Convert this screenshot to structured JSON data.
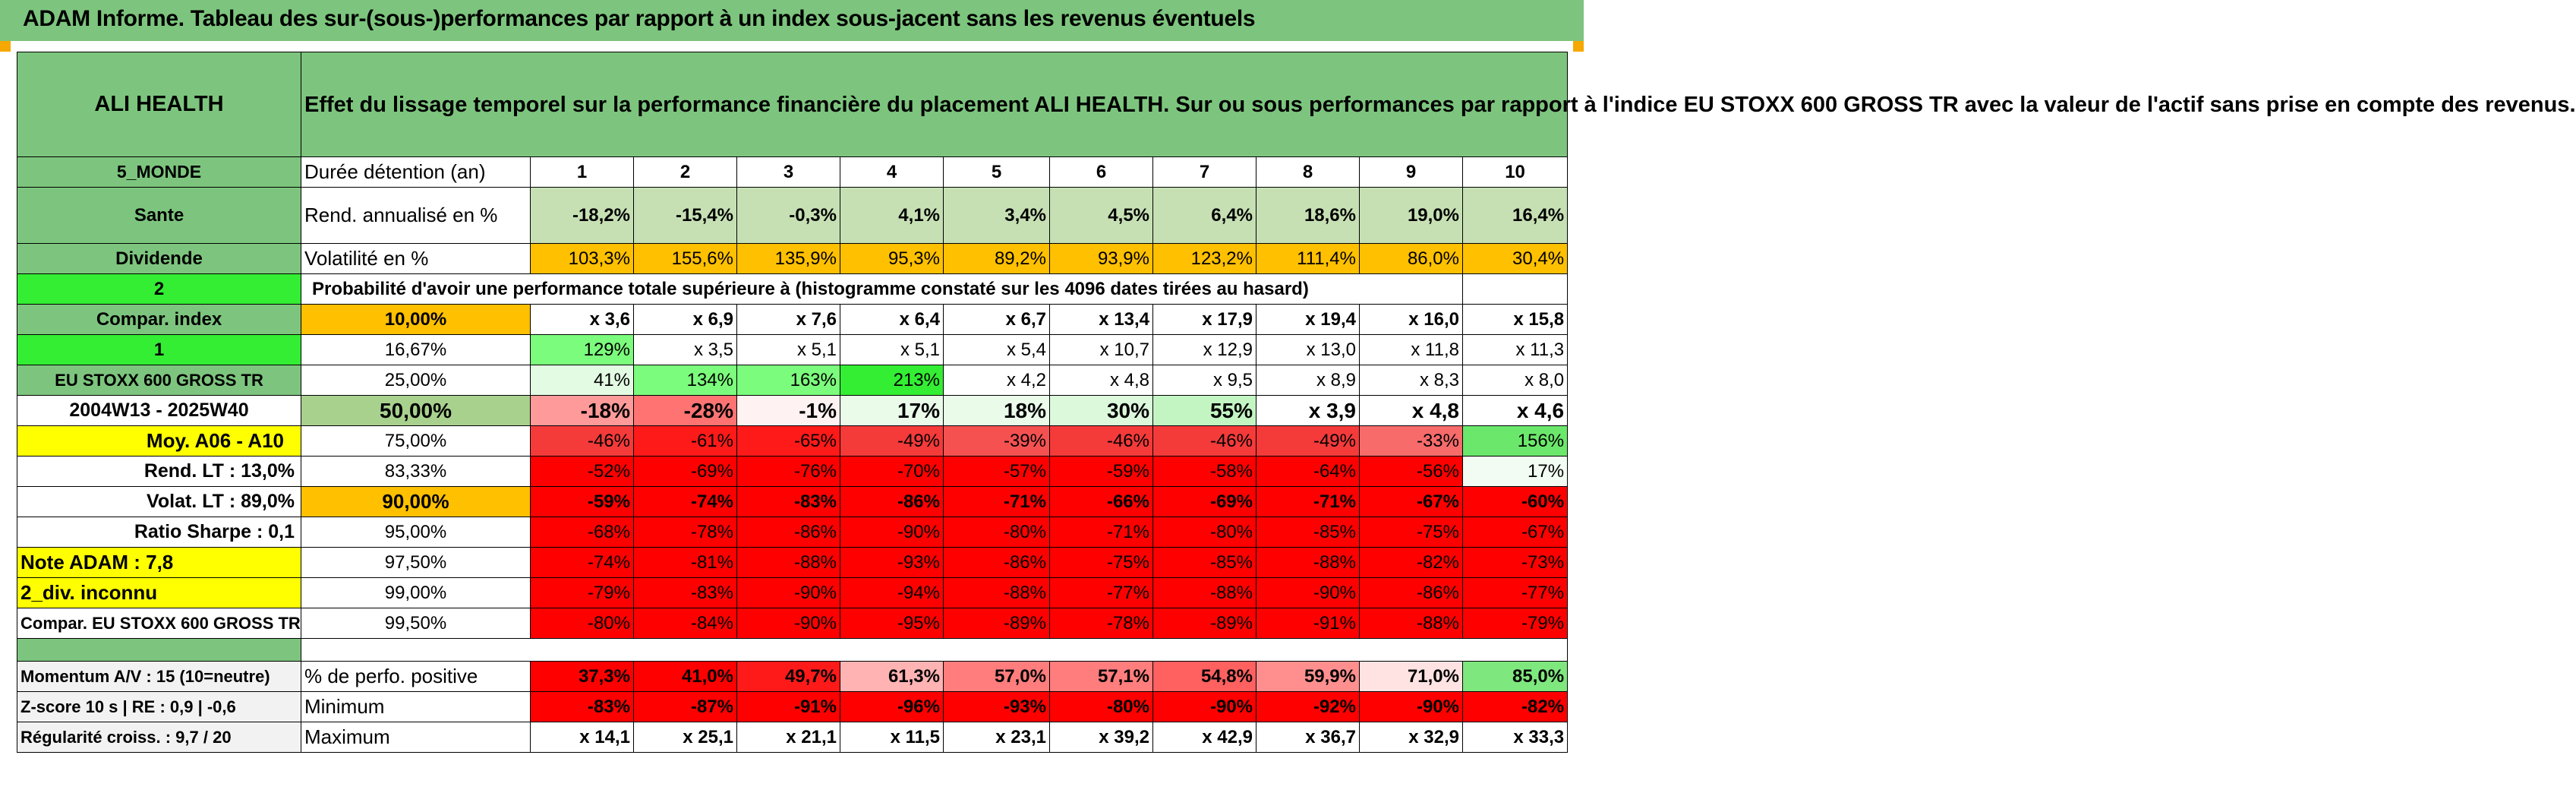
{
  "header": {
    "title": "ADAM Informe. Tableau des sur-(sous-)performances par rapport à un index sous-jacent sans les revenus éventuels"
  },
  "asset": {
    "name": "ALI HEALTH",
    "description": "Effet du lissage temporel sur la performance financière du placement ALI HEALTH. Sur ou sous performances par rapport à l'indice EU STOXX 600 GROSS TR avec la valeur de l'actif sans prise en compte des revenus."
  },
  "colors": {
    "header_green": "#7dc57e",
    "orange": "#ffc000",
    "bright_green": "#33ee33",
    "yellow": "#ffff00",
    "dark_red": "#ff0000",
    "label_red": "#d7191c"
  },
  "side": {
    "zone": "5_MONDE",
    "sector": "Sante",
    "dividend": "Dividende",
    "selector1": "2",
    "compar_index": "Compar. index",
    "selector2": "1",
    "index_name": "EU STOXX 600 GROSS TR",
    "period": "2004W13 - 2025W40",
    "moy": "Moy. A06 - A10",
    "rend_lt": "Rend. LT :    13,0%",
    "volat_lt": "Volat. LT :   89,0%",
    "sharpe": "Ratio Sharpe :    0,1",
    "note": "Note ADAM : 7,8",
    "div": "2_div. inconnu",
    "compar_full": "Compar. EU STOXX 600 GROSS TR",
    "momentum": "Momentum A/V : 15 (10=neutre)",
    "zscore": "Z-score 10 s | RE : 0,9 | -0,6",
    "regularite": "Régularité croiss. : 9,7 / 20"
  },
  "rows": {
    "duree": {
      "label": "Durée détention (an)",
      "values": [
        "1",
        "2",
        "3",
        "4",
        "5",
        "6",
        "7",
        "8",
        "9",
        "10"
      ]
    },
    "rend": {
      "label": "Rend. annualisé en %",
      "values": [
        "-18,2%",
        "-15,4%",
        "-0,3%",
        "4,1%",
        "3,4%",
        "4,5%",
        "6,4%",
        "18,6%",
        "19,0%",
        "16,4%"
      ]
    },
    "vol": {
      "label": "Volatilité en %",
      "values": [
        "103,3%",
        "155,6%",
        "135,9%",
        "95,3%",
        "89,2%",
        "93,9%",
        "123,2%",
        "111,4%",
        "86,0%",
        "30,4%"
      ]
    },
    "proba_title": "Probabilité d'avoir une performance totale supérieure à (histogramme constaté sur les 4096 dates tirées au hasard)",
    "quantiles": [
      {
        "pct": "10,00%",
        "values": [
          "x 3,6",
          "x 6,9",
          "x 7,6",
          "x 6,4",
          "x 6,7",
          "x 13,4",
          "x 17,9",
          "x 19,4",
          "x 16,0",
          "x 15,8"
        ]
      },
      {
        "pct": "16,67%",
        "values": [
          "129%",
          "x 3,5",
          "x 5,1",
          "x 5,1",
          "x 5,4",
          "x 10,7",
          "x 12,9",
          "x 13,0",
          "x 11,8",
          "x 11,3"
        ]
      },
      {
        "pct": "25,00%",
        "values": [
          "41%",
          "134%",
          "163%",
          "213%",
          "x 4,2",
          "x 4,8",
          "x 9,5",
          "x 8,9",
          "x 8,3",
          "x 8,0"
        ]
      },
      {
        "pct": "50,00%",
        "values": [
          "-18%",
          "-28%",
          "-1%",
          "17%",
          "18%",
          "30%",
          "55%",
          "x 3,9",
          "x 4,8",
          "x 4,6"
        ]
      },
      {
        "pct": "75,00%",
        "values": [
          "-46%",
          "-61%",
          "-65%",
          "-49%",
          "-39%",
          "-46%",
          "-46%",
          "-49%",
          "-33%",
          "156%"
        ]
      },
      {
        "pct": "83,33%",
        "values": [
          "-52%",
          "-69%",
          "-76%",
          "-70%",
          "-57%",
          "-59%",
          "-58%",
          "-64%",
          "-56%",
          "17%"
        ]
      },
      {
        "pct": "90,00%",
        "values": [
          "-59%",
          "-74%",
          "-83%",
          "-86%",
          "-71%",
          "-66%",
          "-69%",
          "-71%",
          "-67%",
          "-60%"
        ]
      },
      {
        "pct": "95,00%",
        "values": [
          "-68%",
          "-78%",
          "-86%",
          "-90%",
          "-80%",
          "-71%",
          "-80%",
          "-85%",
          "-75%",
          "-67%"
        ]
      },
      {
        "pct": "97,50%",
        "values": [
          "-74%",
          "-81%",
          "-88%",
          "-93%",
          "-86%",
          "-75%",
          "-85%",
          "-88%",
          "-82%",
          "-73%"
        ]
      },
      {
        "pct": "99,00%",
        "values": [
          "-79%",
          "-83%",
          "-90%",
          "-94%",
          "-88%",
          "-77%",
          "-88%",
          "-90%",
          "-86%",
          "-77%"
        ]
      },
      {
        "pct": "99,50%",
        "values": [
          "-80%",
          "-84%",
          "-90%",
          "-95%",
          "-89%",
          "-78%",
          "-89%",
          "-91%",
          "-88%",
          "-79%"
        ]
      }
    ],
    "positive": {
      "label": "% de perfo. positive",
      "values": [
        "37,3%",
        "41,0%",
        "49,7%",
        "61,3%",
        "57,0%",
        "57,1%",
        "54,8%",
        "59,9%",
        "71,0%",
        "85,0%"
      ]
    },
    "minimum": {
      "label": "Minimum",
      "values": [
        "-83%",
        "-87%",
        "-91%",
        "-96%",
        "-93%",
        "-80%",
        "-90%",
        "-92%",
        "-90%",
        "-82%"
      ]
    },
    "maximum": {
      "label": "Maximum",
      "values": [
        "x 14,1",
        "x 25,1",
        "x 21,1",
        "x 11,5",
        "x 23,1",
        "x 39,2",
        "x 42,9",
        "x 36,7",
        "x 32,9",
        "x 33,3"
      ]
    }
  }
}
